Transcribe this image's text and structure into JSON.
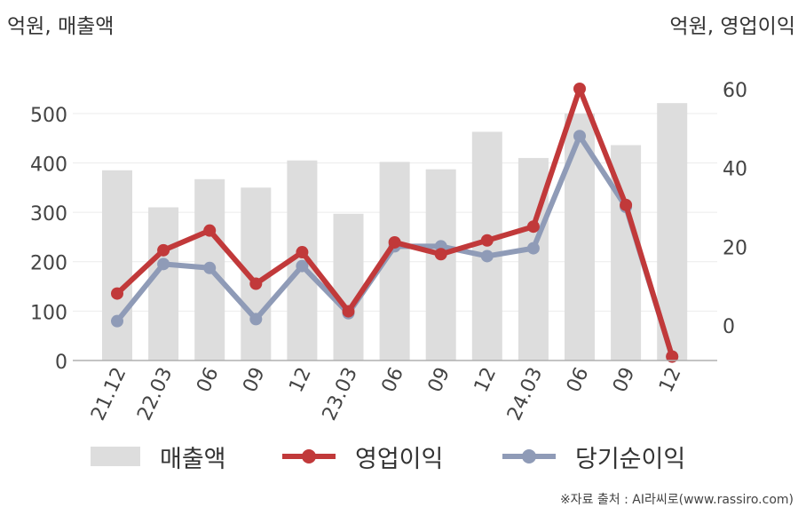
{
  "units": {
    "left": "억원, 매출액",
    "right": "억원, 영업이익"
  },
  "legend": {
    "revenue": "매출액",
    "operating_profit": "영업이익",
    "net_income": "당기순이익"
  },
  "source": "※자료 출처 : AI라씨로(www.rassiro.com)",
  "colors": {
    "revenue": "#dddddd",
    "operating_profit": "#c1393a",
    "net_income": "#8f9bb7"
  },
  "chart_data": {
    "type": "bar",
    "categories": [
      "21.12",
      "22.03",
      "06",
      "09",
      "12",
      "23.03",
      "06",
      "09",
      "12",
      "24.03",
      "06",
      "09",
      "12"
    ],
    "y_left": {
      "ticks": [
        "0",
        "100",
        "200",
        "300",
        "400",
        "500"
      ],
      "ylim": [
        0,
        550
      ]
    },
    "y_right": {
      "ticks": [
        "0",
        "20",
        "40",
        "60"
      ],
      "ylim": [
        -9,
        60
      ]
    },
    "grid": true,
    "legend_position": "bottom",
    "series": [
      {
        "name": "매출액",
        "type": "bar",
        "axis": "left",
        "values": [
          385,
          310,
          367,
          350,
          405,
          297,
          402,
          387,
          463,
          410,
          500,
          436,
          521
        ]
      },
      {
        "name": "영업이익",
        "type": "line",
        "axis": "right",
        "values": [
          8,
          19,
          24,
          10.5,
          18.5,
          3.5,
          21,
          18,
          21.5,
          25,
          60,
          30.5,
          -8
        ]
      },
      {
        "name": "당기순이익",
        "type": "line",
        "axis": "right",
        "values": [
          1,
          15.5,
          14.5,
          1.5,
          15,
          3,
          20,
          20,
          17.5,
          19.5,
          48,
          30,
          -8
        ]
      }
    ]
  }
}
